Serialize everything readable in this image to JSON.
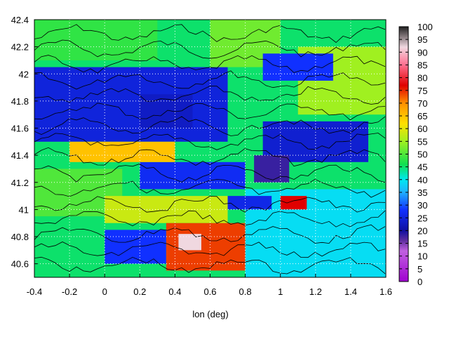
{
  "chart_data": {
    "type": "heatmap",
    "title": "",
    "xlabel": "lon (deg)",
    "ylabel": "",
    "xlim": [
      -0.4,
      1.6
    ],
    "ylim": [
      40.5,
      42.4
    ],
    "x_ticks": [
      "-0.4",
      "-0.2",
      "0",
      "0.2",
      "0.4",
      "0.6",
      "0.8",
      "1",
      "1.2",
      "1.4",
      "1.6"
    ],
    "y_ticks": [
      "40.6",
      "40.8",
      "41",
      "41.2",
      "41.4",
      "41.6",
      "41.8",
      "42",
      "42.2",
      "42.4"
    ],
    "grid": true,
    "contours": true,
    "colorbar": {
      "range": [
        0,
        100
      ],
      "ticks": [
        "0",
        "5",
        "10",
        "15",
        "20",
        "25",
        "30",
        "35",
        "40",
        "45",
        "50",
        "55",
        "60",
        "65",
        "70",
        "75",
        "80",
        "85",
        "90",
        "95",
        "100"
      ],
      "placement": "right"
    },
    "colormap": [
      {
        "v": 0,
        "color": "#a000d0"
      },
      {
        "v": 12,
        "color": "#c060e0"
      },
      {
        "v": 16,
        "color": "#6030a0"
      },
      {
        "v": 20,
        "color": "#1010a0"
      },
      {
        "v": 28,
        "color": "#1030ff"
      },
      {
        "v": 35,
        "color": "#20b0ff"
      },
      {
        "v": 40,
        "color": "#00e8f0"
      },
      {
        "v": 46,
        "color": "#10e050"
      },
      {
        "v": 55,
        "color": "#a0f020"
      },
      {
        "v": 62,
        "color": "#ffe000"
      },
      {
        "v": 70,
        "color": "#ff9000"
      },
      {
        "v": 77,
        "color": "#e00000"
      },
      {
        "v": 85,
        "color": "#ff7090"
      },
      {
        "v": 92,
        "color": "#f0d8e0"
      },
      {
        "v": 100,
        "color": "#202020"
      }
    ],
    "regions": [
      {
        "lon": [
          -0.4,
          1.6
        ],
        "lat": [
          40.5,
          42.4
        ],
        "value": 45
      },
      {
        "lon": [
          0.8,
          1.6
        ],
        "lat": [
          40.5,
          41.15
        ],
        "value": 39
      },
      {
        "lon": [
          -0.4,
          0.7
        ],
        "lat": [
          41.5,
          42.05
        ],
        "value": 25
      },
      {
        "lon": [
          0.2,
          0.5
        ],
        "lat": [
          41.6,
          41.85
        ],
        "value": 23
      },
      {
        "lon": [
          0.9,
          1.5
        ],
        "lat": [
          41.35,
          41.65
        ],
        "value": 24
      },
      {
        "lon": [
          0.85,
          1.05
        ],
        "lat": [
          41.2,
          41.4
        ],
        "value": 18
      },
      {
        "lon": [
          0.2,
          0.8
        ],
        "lat": [
          41.15,
          41.35
        ],
        "value": 27
      },
      {
        "lon": [
          -0.4,
          0.1
        ],
        "lat": [
          40.95,
          41.3
        ],
        "value": 50
      },
      {
        "lon": [
          0.0,
          0.7
        ],
        "lat": [
          40.9,
          41.1
        ],
        "value": 58
      },
      {
        "lon": [
          0.0,
          0.35
        ],
        "lat": [
          40.6,
          40.85
        ],
        "value": 28
      },
      {
        "lon": [
          0.35,
          0.8
        ],
        "lat": [
          40.55,
          40.9
        ],
        "value": 74
      },
      {
        "lon": [
          0.42,
          0.55
        ],
        "lat": [
          40.7,
          40.82
        ],
        "value": 92
      },
      {
        "lon": [
          0.7,
          0.95
        ],
        "lat": [
          41.0,
          41.1
        ],
        "value": 26
      },
      {
        "lon": [
          1.0,
          1.15
        ],
        "lat": [
          41.0,
          41.1
        ],
        "value": 77
      },
      {
        "lon": [
          -0.4,
          0.3
        ],
        "lat": [
          42.1,
          42.4
        ],
        "value": 48
      },
      {
        "lon": [
          0.6,
          1.0
        ],
        "lat": [
          42.05,
          42.4
        ],
        "value": 52
      },
      {
        "lon": [
          1.1,
          1.6
        ],
        "lat": [
          41.7,
          42.2
        ],
        "value": 55
      },
      {
        "lon": [
          0.9,
          1.3
        ],
        "lat": [
          41.95,
          42.15
        ],
        "value": 28
      },
      {
        "lon": [
          -0.2,
          0.4
        ],
        "lat": [
          41.35,
          41.5
        ],
        "value": 65
      }
    ]
  }
}
